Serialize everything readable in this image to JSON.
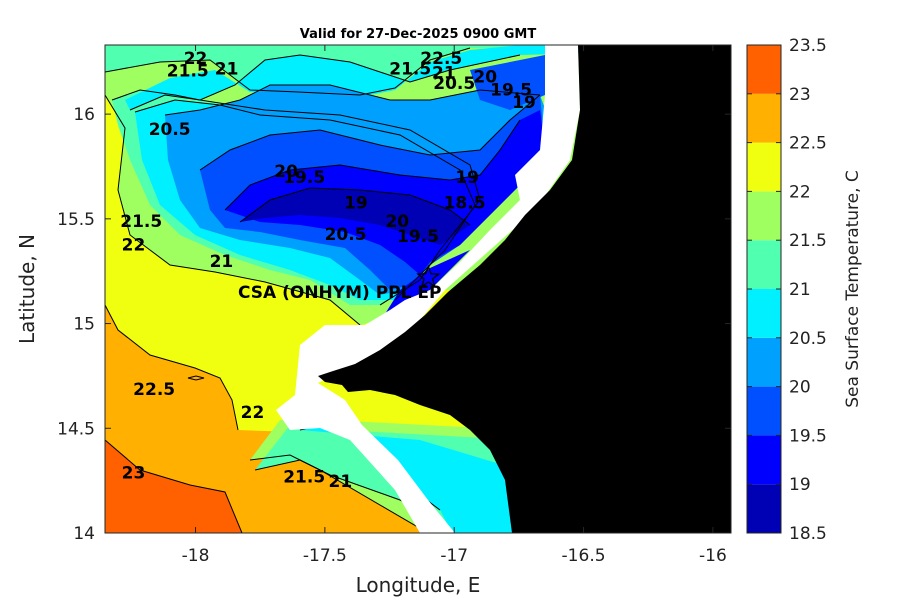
{
  "chart_data": {
    "type": "heatmap",
    "title": "Valid for 27-Dec-2025 0900 GMT",
    "xlabel": "Longitude, E",
    "ylabel": "Latitude, N",
    "colorbar_label": "Sea Surface Temperature, C",
    "xlim": [
      -18.35,
      -15.93
    ],
    "ylim": [
      14.0,
      16.33
    ],
    "x_ticks": [
      -18,
      -17.5,
      -17,
      -16.5,
      -16
    ],
    "x_tick_labels": [
      "-18",
      "-17.5",
      "-17",
      "-16.5",
      "-16"
    ],
    "y_ticks": [
      14,
      14.5,
      15,
      15.5,
      16
    ],
    "y_tick_labels": [
      "14",
      "14.5",
      "15",
      "15.5",
      "16"
    ],
    "colorbar": {
      "min": 18.5,
      "max": 23.5,
      "levels": [
        18.5,
        19,
        19.5,
        20,
        20.5,
        21,
        21.5,
        22,
        22.5,
        23,
        23.5
      ],
      "tick_labels": [
        "18.5",
        "19",
        "19.5",
        "20",
        "20.5",
        "21",
        "21.5",
        "22",
        "22.5",
        "23",
        "23.5"
      ],
      "colors": [
        "#0000b4",
        "#0000ff",
        "#0050ff",
        "#00a0ff",
        "#00f0ff",
        "#50ffb0",
        "#a0ff60",
        "#f0ff10",
        "#ffb000",
        "#ff6000"
      ]
    },
    "site": {
      "name": "CSA (ONHYM) PPL EP",
      "lon": -17.1,
      "lat": 15.22
    },
    "contour_labels": [
      {
        "text": "22",
        "lon": -18.0,
        "lat": 16.24
      },
      {
        "text": "21.5",
        "lon": -18.03,
        "lat": 16.18
      },
      {
        "text": "21",
        "lon": -17.88,
        "lat": 16.19
      },
      {
        "text": "20.5",
        "lon": -18.1,
        "lat": 15.9
      },
      {
        "text": "20",
        "lon": -17.65,
        "lat": 15.7
      },
      {
        "text": "19.5",
        "lon": -17.58,
        "lat": 15.67
      },
      {
        "text": "19",
        "lon": -17.38,
        "lat": 15.55
      },
      {
        "text": "20.5",
        "lon": -17.42,
        "lat": 15.4
      },
      {
        "text": "20",
        "lon": -17.22,
        "lat": 15.46
      },
      {
        "text": "19.5",
        "lon": -17.14,
        "lat": 15.39
      },
      {
        "text": "18.5",
        "lon": -16.96,
        "lat": 15.55
      },
      {
        "text": "19",
        "lon": -16.95,
        "lat": 15.67
      },
      {
        "text": "22.5",
        "lon": -17.05,
        "lat": 16.24
      },
      {
        "text": "21.5",
        "lon": -17.17,
        "lat": 16.19
      },
      {
        "text": "21",
        "lon": -17.04,
        "lat": 16.17
      },
      {
        "text": "20.5",
        "lon": -17.0,
        "lat": 16.12
      },
      {
        "text": "20",
        "lon": -16.88,
        "lat": 16.15
      },
      {
        "text": "19.5",
        "lon": -16.78,
        "lat": 16.09
      },
      {
        "text": "19",
        "lon": -16.73,
        "lat": 16.03
      },
      {
        "text": "21.5",
        "lon": -18.21,
        "lat": 15.46
      },
      {
        "text": "22",
        "lon": -18.24,
        "lat": 15.35
      },
      {
        "text": "21",
        "lon": -17.9,
        "lat": 15.27
      },
      {
        "text": "22.5",
        "lon": -18.16,
        "lat": 14.66
      },
      {
        "text": "22",
        "lon": -17.78,
        "lat": 14.55
      },
      {
        "text": "21.5",
        "lon": -17.58,
        "lat": 14.24
      },
      {
        "text": "21",
        "lon": -17.44,
        "lat": 14.22
      },
      {
        "text": "23",
        "lon": -18.24,
        "lat": 14.26
      }
    ]
  }
}
